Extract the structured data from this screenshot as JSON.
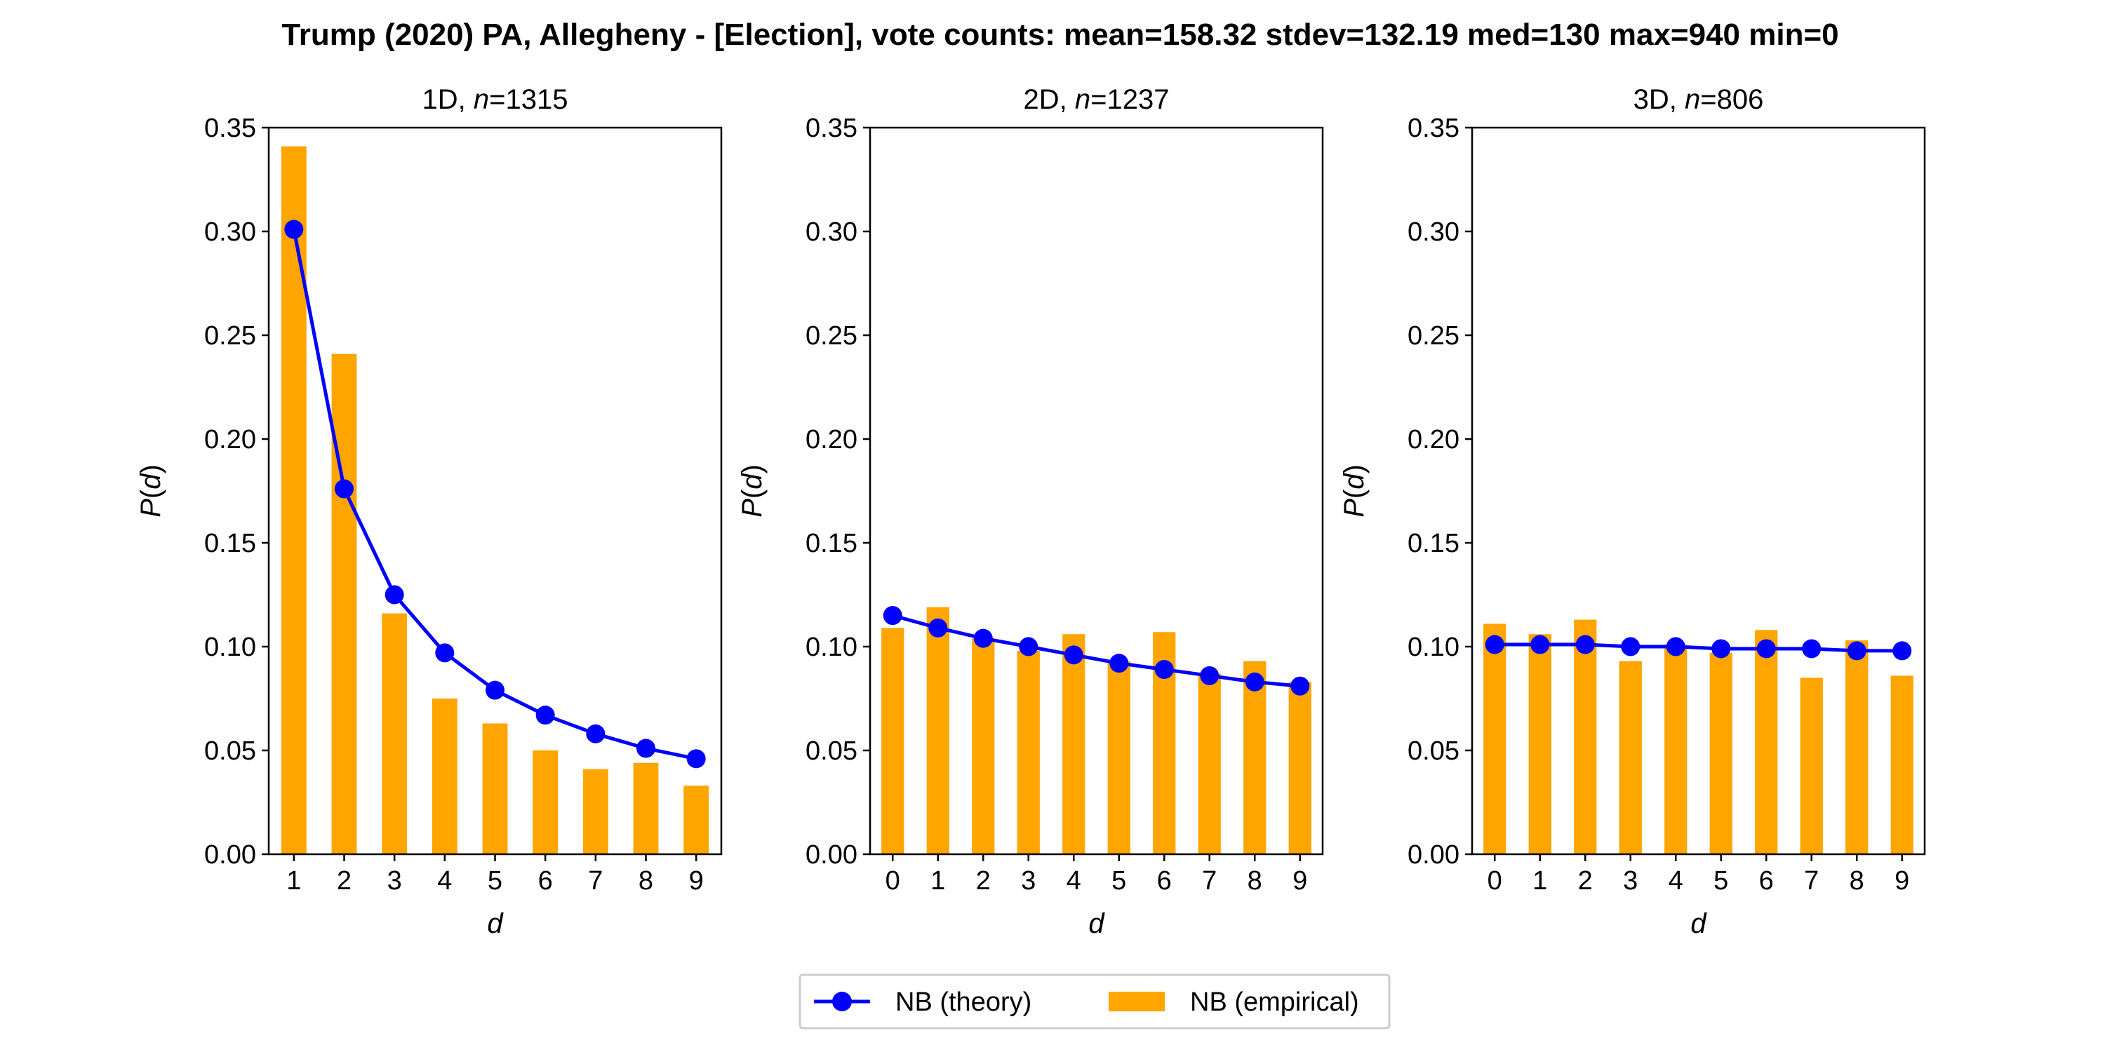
{
  "figure": {
    "title": "Trump (2020) PA, Allegheny - [Election], vote counts: mean=158.32 stdev=132.19 med=130 max=940 min=0",
    "legend": {
      "theory_label": "NB (theory)",
      "empirical_label": "NB (empirical)",
      "placement": "bottom-center"
    }
  },
  "colors": {
    "theory": "#0000ff",
    "empirical": "#ffa500"
  },
  "chart_data": [
    {
      "type": "bar",
      "title_prefix": "1D, ",
      "title_n_symbol": "n",
      "title_n_value": "=1315",
      "xlabel": "d",
      "ylabel_p": "P",
      "ylabel_d": "d",
      "ylim": [
        0,
        0.35
      ],
      "yticks": [
        "0.00",
        "0.05",
        "0.10",
        "0.15",
        "0.20",
        "0.25",
        "0.30",
        "0.35"
      ],
      "categories": [
        "1",
        "2",
        "3",
        "4",
        "5",
        "6",
        "7",
        "8",
        "9"
      ],
      "grid": false,
      "series": [
        {
          "name": "NB (empirical)",
          "kind": "bar",
          "values": [
            0.341,
            0.241,
            0.116,
            0.075,
            0.063,
            0.05,
            0.041,
            0.044,
            0.033
          ]
        },
        {
          "name": "NB (theory)",
          "kind": "line",
          "values": [
            0.301,
            0.176,
            0.125,
            0.097,
            0.079,
            0.067,
            0.058,
            0.051,
            0.046
          ]
        }
      ]
    },
    {
      "type": "bar",
      "title_prefix": "2D, ",
      "title_n_symbol": "n",
      "title_n_value": "=1237",
      "xlabel": "d",
      "ylabel_p": "P",
      "ylabel_d": "d",
      "ylim": [
        0,
        0.35
      ],
      "yticks": [
        "0.00",
        "0.05",
        "0.10",
        "0.15",
        "0.20",
        "0.25",
        "0.30",
        "0.35"
      ],
      "categories": [
        "0",
        "1",
        "2",
        "3",
        "4",
        "5",
        "6",
        "7",
        "8",
        "9"
      ],
      "grid": false,
      "series": [
        {
          "name": "NB (empirical)",
          "kind": "bar",
          "values": [
            0.109,
            0.119,
            0.104,
            0.098,
            0.106,
            0.093,
            0.107,
            0.087,
            0.093,
            0.083
          ]
        },
        {
          "name": "NB (theory)",
          "kind": "line",
          "values": [
            0.115,
            0.109,
            0.104,
            0.1,
            0.096,
            0.092,
            0.089,
            0.086,
            0.083,
            0.081
          ]
        }
      ]
    },
    {
      "type": "bar",
      "title_prefix": "3D, ",
      "title_n_symbol": "n",
      "title_n_value": "=806",
      "xlabel": "d",
      "ylabel_p": "P",
      "ylabel_d": "d",
      "ylim": [
        0,
        0.35
      ],
      "yticks": [
        "0.00",
        "0.05",
        "0.10",
        "0.15",
        "0.20",
        "0.25",
        "0.30",
        "0.35"
      ],
      "categories": [
        "0",
        "1",
        "2",
        "3",
        "4",
        "5",
        "6",
        "7",
        "8",
        "9"
      ],
      "grid": false,
      "series": [
        {
          "name": "NB (empirical)",
          "kind": "bar",
          "values": [
            0.111,
            0.106,
            0.113,
            0.093,
            0.101,
            0.097,
            0.108,
            0.085,
            0.103,
            0.086
          ]
        },
        {
          "name": "NB (theory)",
          "kind": "line",
          "values": [
            0.101,
            0.101,
            0.101,
            0.1,
            0.1,
            0.099,
            0.099,
            0.099,
            0.098,
            0.098
          ]
        }
      ]
    }
  ]
}
